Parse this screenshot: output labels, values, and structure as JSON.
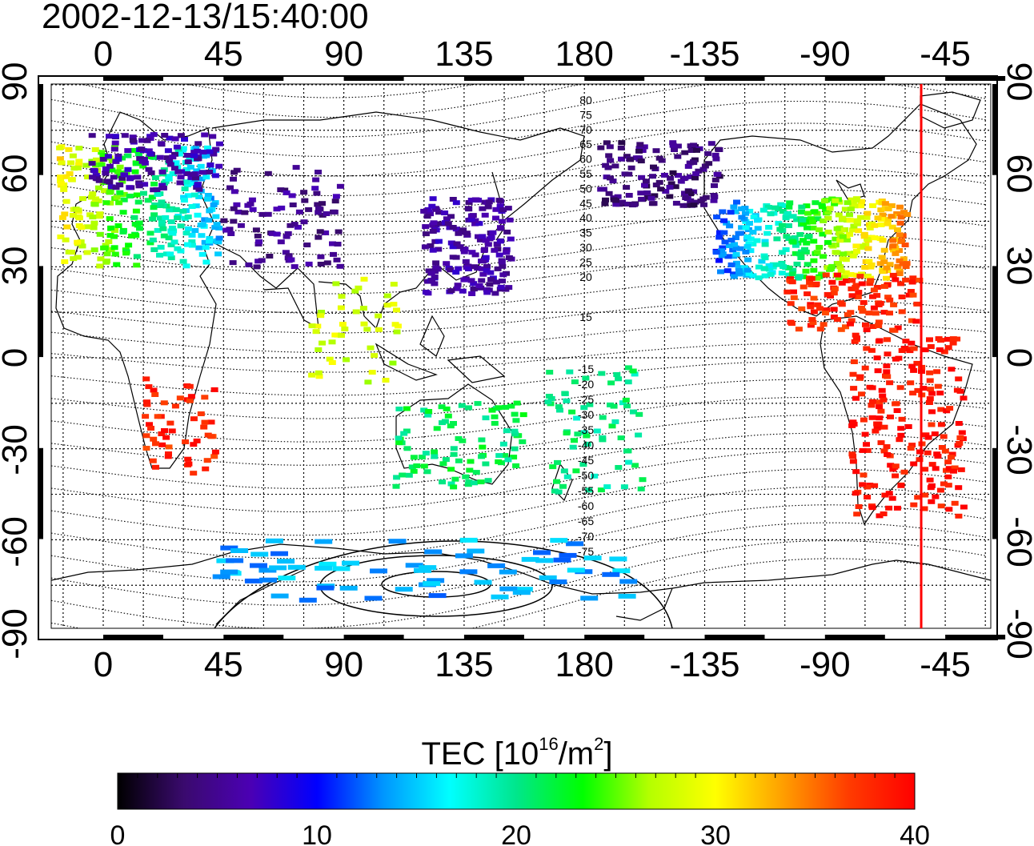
{
  "title": "2002-12-13/15:40:00",
  "longitude_ticks": [
    "0",
    "45",
    "90",
    "135",
    "180",
    "-135",
    "-90",
    "-45"
  ],
  "latitude_ticks": [
    "90",
    "60",
    "30",
    "0",
    "-30",
    "-60",
    "-90"
  ],
  "contour_labels_north": [
    "80",
    "75",
    "70",
    "65",
    "60",
    "55",
    "50",
    "45",
    "40",
    "35",
    "30",
    "25",
    "20",
    "15"
  ],
  "contour_labels_south": [
    "-15",
    "-20",
    "-25",
    "-30",
    "-35",
    "-40",
    "-45",
    "-50",
    "-55",
    "-60",
    "-65",
    "-70",
    "-75"
  ],
  "colorbar": {
    "label_prefix": "TEC  [10",
    "label_exp": "16",
    "label_mid": "/m",
    "label_exp2": "2",
    "label_suffix": "]",
    "ticks": [
      "0",
      "10",
      "20",
      "30",
      "40"
    ],
    "min": 0,
    "max": 40,
    "colors": [
      "#000000",
      "#3a0a6e",
      "#4b00b4",
      "#0000ff",
      "#0096ff",
      "#00ffff",
      "#00e68c",
      "#00ff00",
      "#b4ff00",
      "#ffff00",
      "#ffa000",
      "#ff3c00",
      "#ff0000"
    ]
  },
  "marker_line": {
    "longitude": -54,
    "color": "#ff0000"
  },
  "tec_regions": [
    {
      "name": "europe",
      "tec": 22
    },
    {
      "name": "siberia",
      "tec": 5
    },
    {
      "name": "east-asia",
      "tec": 6
    },
    {
      "name": "north-america",
      "tec": 24
    },
    {
      "name": "south-america",
      "tec": 39
    },
    {
      "name": "australia",
      "tec": 21
    },
    {
      "name": "antarctica",
      "tec": 14
    }
  ]
}
